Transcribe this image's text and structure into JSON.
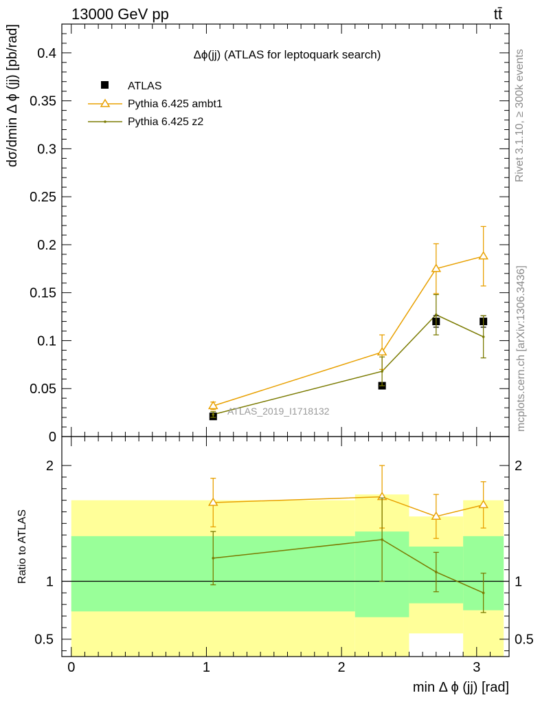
{
  "header": {
    "left": "13000 GeV pp",
    "right": "tt̄"
  },
  "side_labels": {
    "events": "Rivet 3.1.10, ≥ 300k events",
    "source": "mcplots.cern.ch [arXiv:1306.3436]"
  },
  "colors": {
    "atlas": "#000000",
    "ambt1": "#e8a000",
    "z2": "#7a7a00",
    "band_outer": "#ffff99",
    "band_inner": "#99ff99"
  },
  "chart_data": [
    {
      "type": "scatter",
      "title": "Δϕ(jj) (ATLAS for leptoquark search)",
      "ylabel": "dσ/dmin Δ ϕ (jj) [pb/rad]",
      "xlim": [
        -0.07,
        3.24
      ],
      "ylim": [
        0,
        0.43
      ],
      "y_ticks": [
        "0",
        "0.05",
        "0.1",
        "0.15",
        "0.2",
        "0.25",
        "0.3",
        "0.35",
        "0.4"
      ],
      "y_tick_values": [
        0,
        0.05,
        0.1,
        0.15,
        0.2,
        0.25,
        0.3,
        0.35,
        0.4
      ],
      "watermark": "ATLAS_2019_I1718132",
      "legend_position": "top-left",
      "series": [
        {
          "name": "ATLAS",
          "marker": "square",
          "x": [
            1.05,
            2.3,
            2.7,
            3.05
          ],
          "y": [
            0.021,
            0.053,
            0.12,
            0.12
          ],
          "err": [
            0.002,
            0.003,
            0.006,
            0.006
          ]
        },
        {
          "name": "Pythia 6.425 ambt1",
          "marker": "triangle",
          "x": [
            1.05,
            2.3,
            2.7,
            3.05
          ],
          "y": [
            0.032,
            0.088,
            0.175,
            0.188
          ],
          "err": [
            0.004,
            0.018,
            0.026,
            0.031
          ]
        },
        {
          "name": "Pythia 6.425 z2",
          "marker": "dot",
          "x": [
            1.05,
            2.3,
            2.7,
            3.05
          ],
          "y": [
            0.023,
            0.068,
            0.127,
            0.104
          ],
          "err": [
            0.003,
            0.015,
            0.021,
            0.022
          ]
        }
      ]
    },
    {
      "type": "line",
      "ylabel": "Ratio to ATLAS",
      "xlabel": "min Δ ϕ (jj) [rad]",
      "xlim": [
        -0.07,
        3.24
      ],
      "ylim": [
        0.35,
        2.25
      ],
      "x_ticks": [
        "0",
        "1",
        "2",
        "3"
      ],
      "x_tick_values": [
        0,
        1,
        2,
        3
      ],
      "y_ticks": [
        "0.5",
        "1",
        "2"
      ],
      "y_tick_values": [
        0.5,
        1,
        2
      ],
      "reference_line": 1,
      "bands": [
        {
          "x0": 0,
          "x1": 2.1,
          "outer": [
            0.35,
            1.7
          ],
          "inner": [
            0.74,
            1.39
          ]
        },
        {
          "x0": 2.1,
          "x1": 2.5,
          "outer": [
            0.35,
            1.75
          ],
          "inner": [
            0.69,
            1.43
          ]
        },
        {
          "x0": 2.5,
          "x1": 2.9,
          "outer": [
            0.55,
            1.56
          ],
          "inner": [
            0.81,
            1.3
          ]
        },
        {
          "x0": 2.9,
          "x1": 3.2,
          "outer": [
            0.35,
            1.7
          ],
          "inner": [
            0.75,
            1.39
          ]
        }
      ],
      "series": [
        {
          "name": "Pythia 6.425 ambt1",
          "marker": "triangle",
          "x": [
            1.05,
            2.3,
            2.7,
            3.05
          ],
          "y": [
            1.68,
            1.73,
            1.56,
            1.66
          ],
          "err": [
            0.21,
            0.27,
            0.19,
            0.2
          ]
        },
        {
          "name": "Pythia 6.425 z2",
          "marker": "dot",
          "x": [
            1.05,
            2.3,
            2.7,
            3.05
          ],
          "y": [
            1.2,
            1.36,
            1.08,
            0.9
          ],
          "err": [
            0.23,
            0.36,
            0.17,
            0.17
          ]
        }
      ]
    }
  ]
}
